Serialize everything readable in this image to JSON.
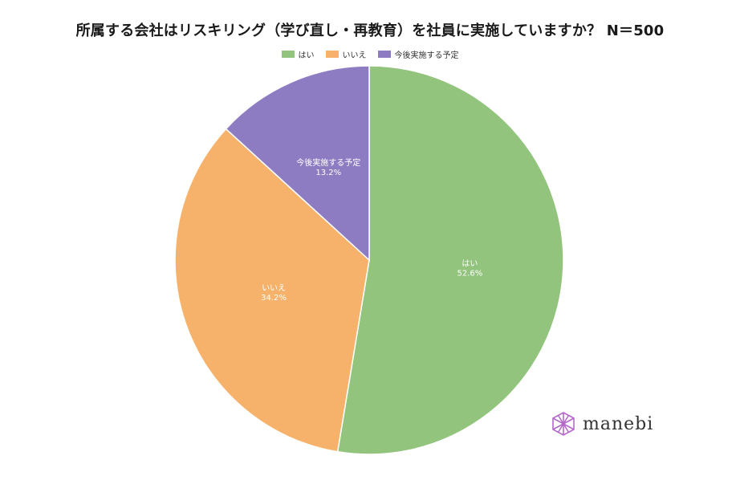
{
  "chart_data": {
    "type": "pie",
    "title": "所属する会社はリスキリング（学び直し・再教育）を社員に実施していますか？ N＝500",
    "categories": [
      "はい",
      "いいえ",
      "今後実施する予定"
    ],
    "values": [
      52.6,
      34.2,
      13.2
    ],
    "value_labels": [
      "52.6%",
      "34.2%",
      "13.2%"
    ],
    "colors": [
      "#93c47d",
      "#f6b26b",
      "#8e7cc3"
    ],
    "legend_position": "top-center",
    "start": "12 o'clock, clockwise"
  },
  "brand": {
    "name": "manebi",
    "icon": "lattice-logo-icon",
    "color": "#b469c9"
  }
}
